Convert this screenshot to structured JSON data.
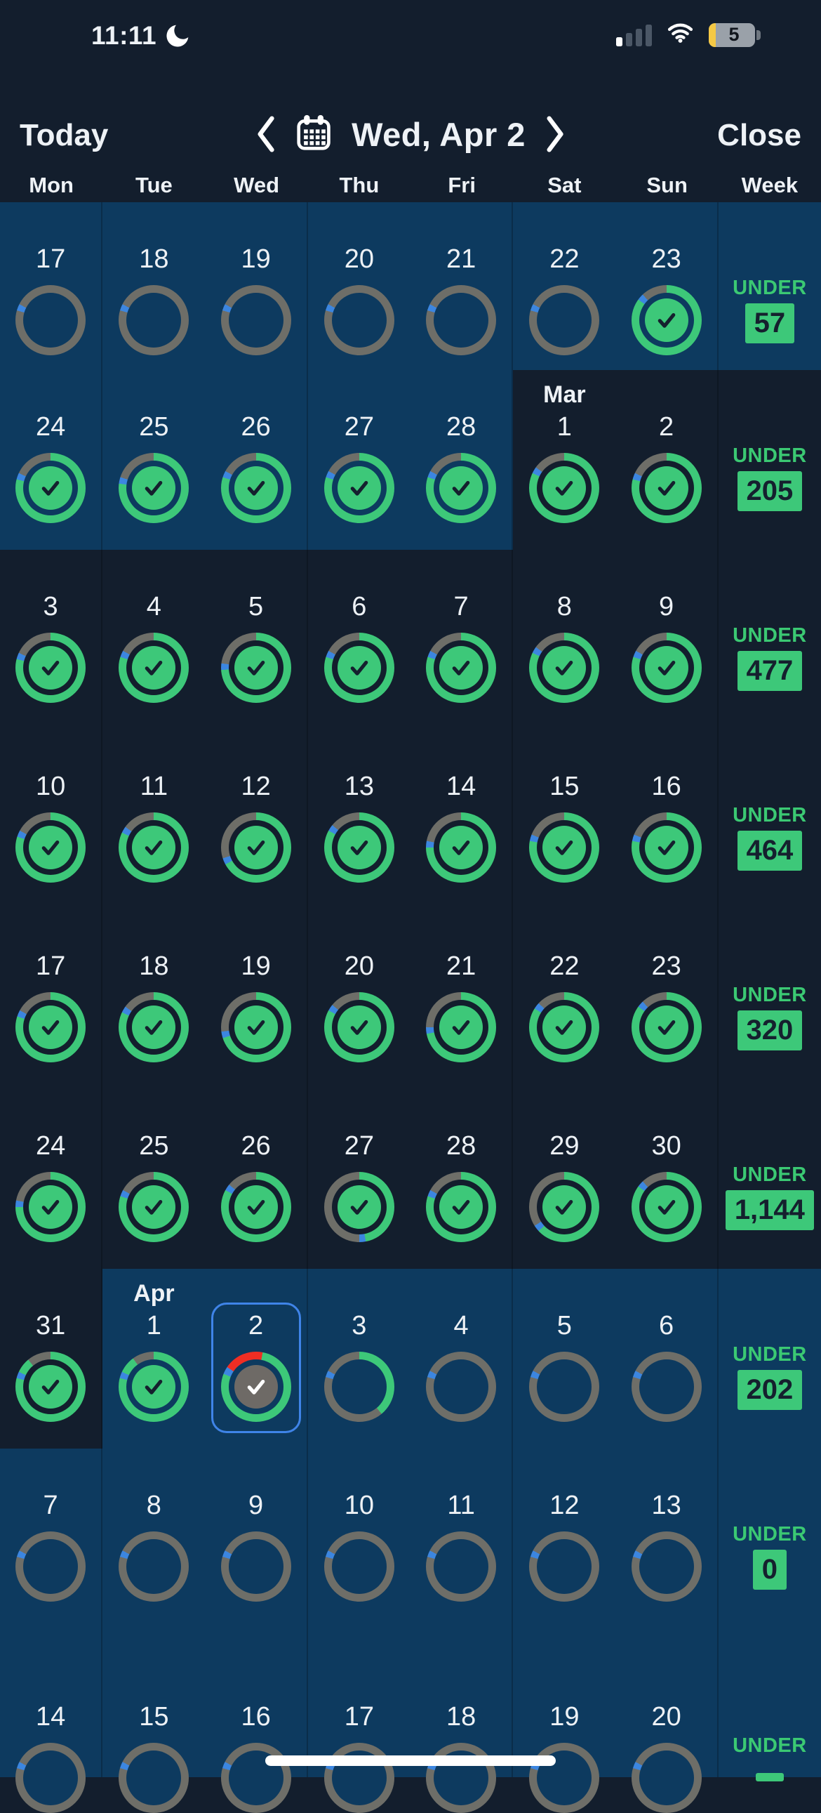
{
  "status_bar": {
    "time": "11:11",
    "battery_level": "5"
  },
  "header": {
    "today_label": "Today",
    "date_title": "Wed, Apr 2",
    "close_label": "Close"
  },
  "weekday_header": [
    "Mon",
    "Tue",
    "Wed",
    "Thu",
    "Fri",
    "Sat",
    "Sun",
    "Week"
  ],
  "colors": {
    "background_dark": "#131e2d",
    "background_out_month": "#0d3a5f",
    "ring_green": "#3dc879",
    "ring_gray": "#6e6e68",
    "ring_blue": "#3c86e0",
    "ring_red": "#ef2e24",
    "today_circle_gray": "#6e6a66",
    "check_dark": "#15202e",
    "badge_green": "#3dc879",
    "under_text_green": "#3bc973",
    "selection_blue": "#3f84e8",
    "text_white": "#eef2f6",
    "battery_yellow": "#f5c945"
  },
  "weeks": [
    {
      "summary_label": "UNDER",
      "summary_value": "57",
      "summary_out": true,
      "days": [
        {
          "d": "17",
          "state": "empty",
          "out": true
        },
        {
          "d": "18",
          "state": "empty",
          "out": true
        },
        {
          "d": "19",
          "state": "empty",
          "out": true
        },
        {
          "d": "20",
          "state": "empty",
          "out": true
        },
        {
          "d": "21",
          "state": "empty",
          "out": true
        },
        {
          "d": "22",
          "state": "empty",
          "out": true
        },
        {
          "d": "23",
          "state": "done",
          "g": 0.85,
          "out": true
        }
      ]
    },
    {
      "summary_label": "UNDER",
      "summary_value": "205",
      "summary_out": false,
      "days": [
        {
          "d": "24",
          "state": "done",
          "g": 0.79,
          "out": true
        },
        {
          "d": "25",
          "state": "done",
          "g": 0.77,
          "out": true
        },
        {
          "d": "26",
          "state": "done",
          "g": 0.8,
          "out": true
        },
        {
          "d": "27",
          "state": "done",
          "g": 0.8,
          "out": true
        },
        {
          "d": "28",
          "state": "done",
          "g": 0.8,
          "out": true
        },
        {
          "d": "1",
          "month": "Mar",
          "state": "done",
          "g": 0.82,
          "out": false
        },
        {
          "d": "2",
          "state": "done",
          "g": 0.79,
          "out": false
        }
      ]
    },
    {
      "summary_label": "UNDER",
      "summary_value": "477",
      "summary_out": false,
      "days": [
        {
          "d": "3",
          "state": "done",
          "g": 0.79,
          "out": false
        },
        {
          "d": "4",
          "state": "done",
          "g": 0.8,
          "out": false
        },
        {
          "d": "5",
          "state": "done",
          "g": 0.74,
          "out": false
        },
        {
          "d": "6",
          "state": "done",
          "g": 0.8,
          "out": false
        },
        {
          "d": "7",
          "state": "done",
          "g": 0.8,
          "out": false
        },
        {
          "d": "8",
          "state": "done",
          "g": 0.82,
          "out": false
        },
        {
          "d": "9",
          "state": "done",
          "g": 0.8,
          "out": false
        }
      ]
    },
    {
      "summary_label": "UNDER",
      "summary_value": "464",
      "summary_out": false,
      "days": [
        {
          "d": "10",
          "state": "done",
          "g": 0.8,
          "out": false
        },
        {
          "d": "11",
          "state": "done",
          "g": 0.82,
          "out": false
        },
        {
          "d": "12",
          "state": "done",
          "g": 0.67,
          "out": false
        },
        {
          "d": "13",
          "state": "done",
          "g": 0.83,
          "out": false
        },
        {
          "d": "14",
          "state": "done",
          "g": 0.75,
          "out": false
        },
        {
          "d": "15",
          "state": "done",
          "g": 0.78,
          "out": false
        },
        {
          "d": "16",
          "state": "done",
          "g": 0.78,
          "out": false
        }
      ]
    },
    {
      "summary_label": "UNDER",
      "summary_value": "320",
      "summary_out": false,
      "days": [
        {
          "d": "17",
          "state": "done",
          "g": 0.8,
          "out": false
        },
        {
          "d": "18",
          "state": "done",
          "g": 0.82,
          "out": false
        },
        {
          "d": "19",
          "state": "done",
          "g": 0.7,
          "out": false
        },
        {
          "d": "20",
          "state": "done",
          "g": 0.83,
          "out": false
        },
        {
          "d": "21",
          "state": "done",
          "g": 0.72,
          "out": false
        },
        {
          "d": "22",
          "state": "done",
          "g": 0.84,
          "out": false
        },
        {
          "d": "23",
          "state": "done",
          "g": 0.85,
          "out": false
        }
      ]
    },
    {
      "summary_label": "UNDER",
      "summary_value": "1,144",
      "summary_out": false,
      "days": [
        {
          "d": "24",
          "state": "done",
          "g": 0.75,
          "out": false
        },
        {
          "d": "25",
          "state": "done",
          "g": 0.8,
          "out": false
        },
        {
          "d": "26",
          "state": "done",
          "g": 0.83,
          "out": false
        },
        {
          "d": "27",
          "state": "done",
          "g": 0.47,
          "out": false
        },
        {
          "d": "28",
          "state": "done",
          "g": 0.8,
          "out": false
        },
        {
          "d": "29",
          "state": "done",
          "g": 0.63,
          "out": false
        },
        {
          "d": "30",
          "state": "done",
          "g": 0.85,
          "out": false
        }
      ]
    },
    {
      "summary_label": "UNDER",
      "summary_value": "202",
      "summary_out": true,
      "days": [
        {
          "d": "31",
          "state": "done",
          "out": false,
          "segs": [
            [
              "green",
              0,
              0.79
            ],
            [
              "blue",
              0.79,
              0.82
            ],
            [
              "green",
              0.82,
              0.89
            ],
            [
              "gray",
              0.89,
              1
            ]
          ]
        },
        {
          "d": "1",
          "month": "Apr",
          "state": "done",
          "out": true,
          "segs": [
            [
              "green",
              0,
              0.79
            ],
            [
              "blue",
              0.79,
              0.82
            ],
            [
              "green",
              0.82,
              0.9
            ],
            [
              "gray",
              0.9,
              1
            ]
          ]
        },
        {
          "d": "2",
          "state": "today",
          "selected": true,
          "out": true,
          "segs": [
            [
              "red",
              0,
              0.03
            ],
            [
              "green",
              0.03,
              0.81
            ],
            [
              "blue",
              0.81,
              0.845
            ],
            [
              "red",
              0.845,
              1
            ]
          ]
        },
        {
          "d": "3",
          "state": "empty",
          "out": true,
          "segs": [
            [
              "green",
              0,
              0.39
            ],
            [
              "gray",
              0.39,
              0.795
            ],
            [
              "blue",
              0.795,
              0.825
            ],
            [
              "gray",
              0.825,
              1
            ]
          ]
        },
        {
          "d": "4",
          "state": "empty",
          "out": true
        },
        {
          "d": "5",
          "state": "empty",
          "out": true
        },
        {
          "d": "6",
          "state": "empty",
          "out": true
        }
      ]
    },
    {
      "summary_label": "UNDER",
      "summary_value": "0",
      "summary_out": true,
      "days": [
        {
          "d": "7",
          "state": "empty",
          "out": true
        },
        {
          "d": "8",
          "state": "empty",
          "out": true
        },
        {
          "d": "9",
          "state": "empty",
          "out": true
        },
        {
          "d": "10",
          "state": "empty",
          "out": true
        },
        {
          "d": "11",
          "state": "empty",
          "out": true
        },
        {
          "d": "12",
          "state": "empty",
          "out": true
        },
        {
          "d": "13",
          "state": "empty",
          "out": true
        }
      ]
    },
    {
      "summary_label": "UNDER",
      "summary_value": "",
      "summary_out": true,
      "days": [
        {
          "d": "14",
          "state": "empty",
          "out": true
        },
        {
          "d": "15",
          "state": "empty",
          "out": true
        },
        {
          "d": "16",
          "state": "empty",
          "out": true
        },
        {
          "d": "17",
          "state": "empty",
          "out": true
        },
        {
          "d": "18",
          "state": "empty",
          "out": true
        },
        {
          "d": "19",
          "state": "empty",
          "out": true
        },
        {
          "d": "20",
          "state": "empty",
          "out": true
        }
      ]
    }
  ]
}
